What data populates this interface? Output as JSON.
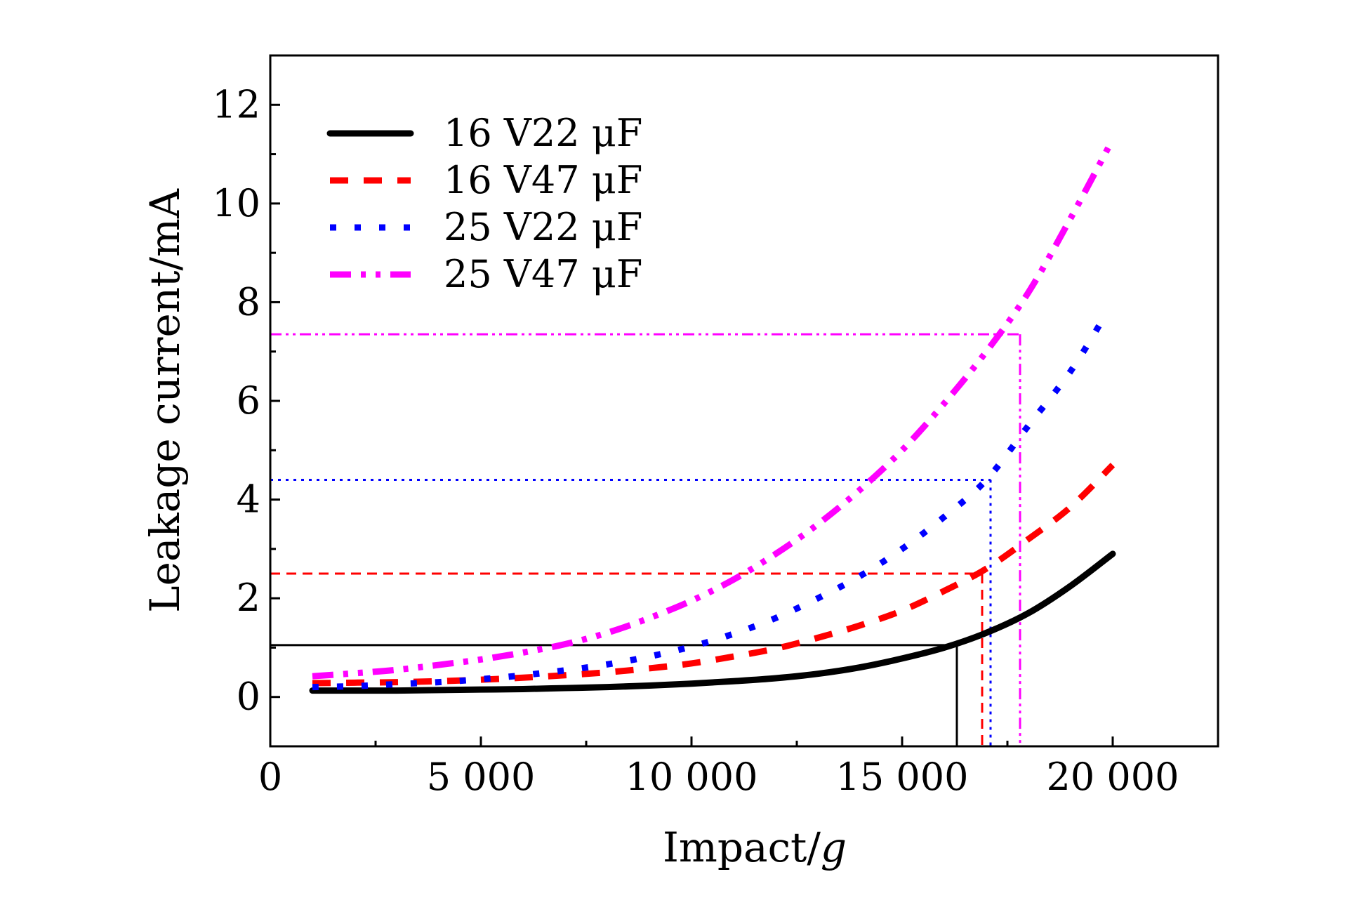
{
  "chart_data": {
    "type": "line",
    "xlabel_main": "Impact/",
    "xlabel_unit": "g",
    "ylabel": "Leakage current/mA",
    "xlim": [
      0,
      22500
    ],
    "ylim": [
      -1,
      13
    ],
    "xticks": [
      0,
      5000,
      10000,
      15000,
      20000
    ],
    "xtick_labels": [
      "0",
      "5 000",
      "10 000",
      "15 000",
      "20 000"
    ],
    "xminor": [
      2500,
      7500,
      12500,
      17500
    ],
    "yticks": [
      0,
      2,
      4,
      6,
      8,
      10,
      12
    ],
    "ytick_labels": [
      "0",
      "2",
      "4",
      "6",
      "8",
      "10",
      "12"
    ],
    "yminor": [
      1,
      3,
      5,
      7,
      9,
      11
    ],
    "legend_position": "top-left",
    "series": [
      {
        "name": "16 V22 μF",
        "color": "#000000",
        "dash": "solid",
        "x": [
          1000,
          2000,
          3000,
          4000,
          5000,
          6000,
          7000,
          8000,
          9000,
          10000,
          11000,
          12000,
          13000,
          14000,
          15000,
          16000,
          17000,
          18000,
          19000,
          20000
        ],
        "y": [
          0.13,
          0.13,
          0.13,
          0.14,
          0.15,
          0.16,
          0.18,
          0.2,
          0.23,
          0.27,
          0.32,
          0.38,
          0.47,
          0.6,
          0.78,
          1.0,
          1.3,
          1.7,
          2.25,
          2.9
        ]
      },
      {
        "name": "16 V47 μF",
        "color": "#ff0000",
        "dash": "dashed",
        "x": [
          1000,
          2000,
          3000,
          4000,
          5000,
          6000,
          7000,
          8000,
          9000,
          10000,
          11000,
          12000,
          13000,
          14000,
          15000,
          16000,
          17000,
          18000,
          19000,
          20000
        ],
        "y": [
          0.28,
          0.29,
          0.3,
          0.32,
          0.35,
          0.39,
          0.44,
          0.5,
          0.58,
          0.68,
          0.82,
          0.98,
          1.2,
          1.45,
          1.75,
          2.15,
          2.6,
          3.2,
          3.85,
          4.7
        ]
      },
      {
        "name": "25 V22 μF",
        "color": "#0000ff",
        "dash": "dotted",
        "x": [
          1000,
          2000,
          3000,
          4000,
          5000,
          6000,
          7000,
          8000,
          9000,
          10000,
          11000,
          12000,
          13000,
          14000,
          15000,
          16000,
          17000,
          18000,
          19000,
          19800
        ],
        "y": [
          0.2,
          0.22,
          0.26,
          0.3,
          0.36,
          0.44,
          0.54,
          0.66,
          0.82,
          1.02,
          1.28,
          1.6,
          2.0,
          2.45,
          3.0,
          3.65,
          4.4,
          5.5,
          6.6,
          7.7
        ]
      },
      {
        "name": "25 V47 μF",
        "color": "#ff00ff",
        "dash": "dashdotdot",
        "x": [
          1000,
          2000,
          3000,
          4000,
          5000,
          6000,
          7000,
          8000,
          9000,
          10000,
          11000,
          12000,
          13000,
          14000,
          15000,
          16000,
          17000,
          18000,
          19000,
          20000
        ],
        "y": [
          0.42,
          0.48,
          0.55,
          0.65,
          0.76,
          0.9,
          1.07,
          1.3,
          1.6,
          1.95,
          2.38,
          2.9,
          3.5,
          4.2,
          5.0,
          5.95,
          7.0,
          8.2,
          9.7,
          11.3
        ]
      }
    ],
    "reference_lines": [
      {
        "series": "16 V22 μF",
        "color": "#000000",
        "dash": "solid",
        "x": 16300,
        "y": 1.05
      },
      {
        "series": "16 V47 μF",
        "color": "#ff0000",
        "dash": "dashed",
        "x": 16900,
        "y": 2.5
      },
      {
        "series": "25 V22 μF",
        "color": "#0000ff",
        "dash": "dotted",
        "x": 17100,
        "y": 4.4
      },
      {
        "series": "25 V47 μF",
        "color": "#ff00ff",
        "dash": "dashdotdot",
        "x": 17800,
        "y": 7.35
      }
    ]
  }
}
